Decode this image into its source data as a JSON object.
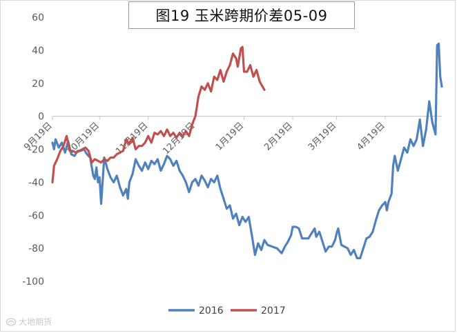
{
  "title": "图19 玉米跨期价差05-09",
  "watermark_text": "大地期货",
  "chart_data": {
    "type": "line",
    "title": "图19 玉米跨期价差05-09",
    "xlabel": "",
    "ylabel": "",
    "ylim": [
      -100,
      60
    ],
    "yticks": [
      60,
      40,
      20,
      0,
      -20,
      -40,
      -60,
      -80,
      -100
    ],
    "xticks": [
      "9月19日",
      "10月19日",
      "11月19日",
      "12月19日",
      "1月19日",
      "2月19日",
      "3月19日",
      "4月19日"
    ],
    "grid": false,
    "legend": "bottom",
    "series": [
      {
        "name": "2016",
        "color": "#4f81bd",
        "points": [
          [
            "09-19",
            -16
          ],
          [
            "09-20",
            -20
          ],
          [
            "09-21",
            -14
          ],
          [
            "09-23",
            -19
          ],
          [
            "09-25",
            -16
          ],
          [
            "09-27",
            -22
          ],
          [
            "09-29",
            -15
          ],
          [
            "10-01",
            -23
          ],
          [
            "10-03",
            -24
          ],
          [
            "10-05",
            -21
          ],
          [
            "10-07",
            -21
          ],
          [
            "10-09",
            -20
          ],
          [
            "10-11",
            -23
          ],
          [
            "10-13",
            -25
          ],
          [
            "10-15",
            -36
          ],
          [
            "10-16",
            -38
          ],
          [
            "10-17",
            -31
          ],
          [
            "10-18",
            -40
          ],
          [
            "10-19",
            -37
          ],
          [
            "10-20",
            -53
          ],
          [
            "10-22",
            -25
          ],
          [
            "10-24",
            -32
          ],
          [
            "10-26",
            -37
          ],
          [
            "10-28",
            -40
          ],
          [
            "10-30",
            -36
          ],
          [
            "11-01",
            -43
          ],
          [
            "11-03",
            -48
          ],
          [
            "11-05",
            -44
          ],
          [
            "11-06",
            -50
          ],
          [
            "11-07",
            -40
          ],
          [
            "11-09",
            -35
          ],
          [
            "11-11",
            -26
          ],
          [
            "11-13",
            -30
          ],
          [
            "11-15",
            -33
          ],
          [
            "11-17",
            -28
          ],
          [
            "11-19",
            -32
          ],
          [
            "11-21",
            -27
          ],
          [
            "11-23",
            -29
          ],
          [
            "11-25",
            -26
          ],
          [
            "11-27",
            -33
          ],
          [
            "11-29",
            -29
          ],
          [
            "12-01",
            -24
          ],
          [
            "12-03",
            -26
          ],
          [
            "12-05",
            -30
          ],
          [
            "12-07",
            -27
          ],
          [
            "12-09",
            -33
          ],
          [
            "12-11",
            -36
          ],
          [
            "12-13",
            -40
          ],
          [
            "12-15",
            -46
          ],
          [
            "12-17",
            -40
          ],
          [
            "12-19",
            -38
          ],
          [
            "12-21",
            -42
          ],
          [
            "12-23",
            -36
          ],
          [
            "12-25",
            -39
          ],
          [
            "12-27",
            -43
          ],
          [
            "12-29",
            -38
          ],
          [
            "12-31",
            -40
          ],
          [
            "01-02",
            -36
          ],
          [
            "01-04",
            -44
          ],
          [
            "01-06",
            -50
          ],
          [
            "01-08",
            -56
          ],
          [
            "01-10",
            -54
          ],
          [
            "01-12",
            -62
          ],
          [
            "01-14",
            -59
          ],
          [
            "01-16",
            -66
          ],
          [
            "01-18",
            -61
          ],
          [
            "01-20",
            -64
          ],
          [
            "01-22",
            -61
          ],
          [
            "01-24",
            -72
          ],
          [
            "01-26",
            -84
          ],
          [
            "01-28",
            -77
          ],
          [
            "01-30",
            -81
          ],
          [
            "02-01",
            -75
          ],
          [
            "02-03",
            -78
          ],
          [
            "02-06",
            -79
          ],
          [
            "02-09",
            -80
          ],
          [
            "02-12",
            -83
          ],
          [
            "02-14",
            -79
          ],
          [
            "02-16",
            -76
          ],
          [
            "02-18",
            -72
          ],
          [
            "02-19",
            -67
          ],
          [
            "02-21",
            -67
          ],
          [
            "02-23",
            -68
          ],
          [
            "02-25",
            -74
          ],
          [
            "02-27",
            -74
          ],
          [
            "03-01",
            -74
          ],
          [
            "03-03",
            -71
          ],
          [
            "03-05",
            -68
          ],
          [
            "03-06",
            -73
          ],
          [
            "03-08",
            -70
          ],
          [
            "03-10",
            -76
          ],
          [
            "03-12",
            -82
          ],
          [
            "03-14",
            -79
          ],
          [
            "03-16",
            -79
          ],
          [
            "03-18",
            -75
          ],
          [
            "03-19",
            -71
          ],
          [
            "03-20",
            -68
          ],
          [
            "03-22",
            -78
          ],
          [
            "03-24",
            -79
          ],
          [
            "03-26",
            -80
          ],
          [
            "03-28",
            -84
          ],
          [
            "03-30",
            -81
          ],
          [
            "04-01",
            -86
          ],
          [
            "04-03",
            -86
          ],
          [
            "04-05",
            -80
          ],
          [
            "04-07",
            -74
          ],
          [
            "04-09",
            -73
          ],
          [
            "04-11",
            -70
          ],
          [
            "04-13",
            -63
          ],
          [
            "04-15",
            -57
          ],
          [
            "04-17",
            -54
          ],
          [
            "04-19",
            -52
          ],
          [
            "04-20",
            -57
          ],
          [
            "04-21",
            -52
          ],
          [
            "04-23",
            -47
          ],
          [
            "04-24",
            -30
          ],
          [
            "04-25",
            -24
          ],
          [
            "04-27",
            -33
          ],
          [
            "04-29",
            -26
          ],
          [
            "05-01",
            -19
          ],
          [
            "05-03",
            -22
          ],
          [
            "05-05",
            -14
          ],
          [
            "05-07",
            -18
          ],
          [
            "05-09",
            -14
          ],
          [
            "05-11",
            -2
          ],
          [
            "05-13",
            -18
          ],
          [
            "05-15",
            -8
          ],
          [
            "05-17",
            9
          ],
          [
            "05-19",
            -4
          ],
          [
            "05-21",
            -11
          ],
          [
            "05-22",
            43
          ],
          [
            "05-23",
            44
          ],
          [
            "05-24",
            24
          ],
          [
            "05-25",
            18
          ]
        ]
      },
      {
        "name": "2017",
        "color": "#c0504d",
        "points": [
          [
            "09-19",
            -40
          ],
          [
            "09-20",
            -30
          ],
          [
            "09-22",
            -26
          ],
          [
            "09-24",
            -21
          ],
          [
            "09-26",
            -18
          ],
          [
            "09-28",
            -12
          ],
          [
            "09-30",
            -21
          ],
          [
            "10-02",
            -21
          ],
          [
            "10-04",
            -22
          ],
          [
            "10-06",
            -21
          ],
          [
            "10-08",
            -20
          ],
          [
            "10-10",
            -19
          ],
          [
            "10-12",
            -21
          ],
          [
            "10-14",
            -28
          ],
          [
            "10-16",
            -26
          ],
          [
            "10-18",
            -27
          ],
          [
            "10-20",
            -28
          ],
          [
            "10-22",
            -26
          ],
          [
            "10-24",
            -27
          ],
          [
            "10-26",
            -25
          ],
          [
            "10-28",
            -25
          ],
          [
            "10-30",
            -23
          ],
          [
            "11-01",
            -22
          ],
          [
            "11-03",
            -21
          ],
          [
            "11-05",
            -14
          ],
          [
            "11-07",
            -17
          ],
          [
            "11-09",
            -13
          ],
          [
            "11-11",
            -20
          ],
          [
            "11-13",
            -18
          ],
          [
            "11-15",
            -18
          ],
          [
            "11-17",
            -16
          ],
          [
            "11-19",
            -12
          ],
          [
            "11-21",
            -16
          ],
          [
            "11-23",
            -10
          ],
          [
            "11-25",
            -11
          ],
          [
            "11-27",
            -9
          ],
          [
            "11-29",
            -12
          ],
          [
            "12-01",
            -8
          ],
          [
            "12-03",
            -12
          ],
          [
            "12-05",
            -10
          ],
          [
            "12-07",
            -13
          ],
          [
            "12-09",
            -10
          ],
          [
            "12-11",
            -12
          ],
          [
            "12-13",
            -9
          ],
          [
            "12-15",
            -12
          ],
          [
            "12-17",
            -5
          ],
          [
            "12-19",
            0
          ],
          [
            "12-21",
            12
          ],
          [
            "12-23",
            18
          ],
          [
            "12-25",
            16
          ],
          [
            "12-27",
            20
          ],
          [
            "12-29",
            15
          ],
          [
            "12-31",
            24
          ],
          [
            "01-02",
            22
          ],
          [
            "01-04",
            28
          ],
          [
            "01-06",
            21
          ],
          [
            "01-08",
            27
          ],
          [
            "01-10",
            31
          ],
          [
            "01-12",
            38
          ],
          [
            "01-14",
            35
          ],
          [
            "01-15",
            30
          ],
          [
            "01-17",
            41
          ],
          [
            "01-18",
            42
          ],
          [
            "01-19",
            27
          ],
          [
            "01-21",
            27
          ],
          [
            "01-23",
            31
          ],
          [
            "01-25",
            24
          ],
          [
            "01-27",
            28
          ],
          [
            "01-29",
            21
          ],
          [
            "02-01",
            16
          ]
        ]
      }
    ]
  }
}
